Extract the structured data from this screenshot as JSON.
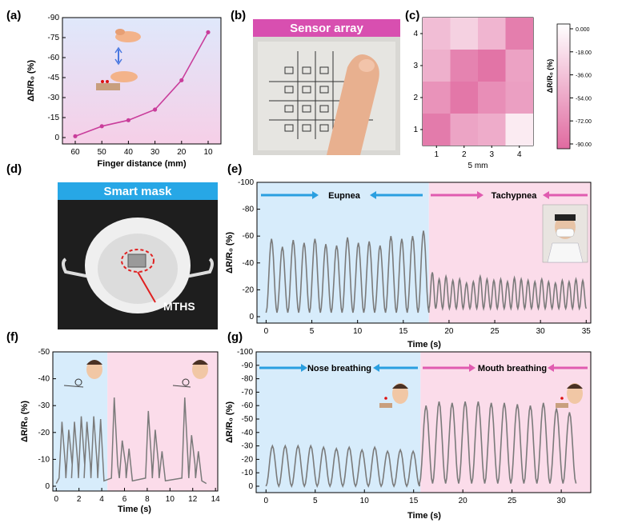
{
  "panels": {
    "a": "(a)",
    "b": "(b)",
    "c": "(c)",
    "d": "(d)",
    "e": "(e)",
    "f": "(f)",
    "g": "(g)"
  },
  "photos": {
    "sensor_array_title": "Sensor array",
    "smart_mask_title": "Smart mask",
    "mths_label": "MTHS"
  },
  "chart_data": [
    {
      "id": "a",
      "type": "line",
      "x": [
        "60",
        "50",
        "40",
        "30",
        "20",
        "10"
      ],
      "y": [
        -1,
        -8.5,
        -13,
        -21,
        -43,
        -79
      ],
      "xlabel": "Finger distance (mm)",
      "ylabel": "ΔR/R₀ (%)",
      "ylim": [
        0,
        -90
      ],
      "yticks": [
        "0",
        "-15",
        "-30",
        "-45",
        "-60",
        "-75",
        "-90"
      ],
      "color": "#c93d9b",
      "background": [
        "#dfe8fb",
        "#f6cfe7"
      ]
    },
    {
      "id": "c",
      "type": "heatmap",
      "xlabel": "5 mm",
      "xticks": [
        "1",
        "2",
        "3",
        "4"
      ],
      "yticks": [
        "1",
        "2",
        "3",
        "4"
      ],
      "values": [
        [
          -80,
          -55,
          -50,
          -12
        ],
        [
          -65,
          -82,
          -68,
          -58
        ],
        [
          -48,
          -75,
          -84,
          -56
        ],
        [
          -40,
          -28,
          -45,
          -78
        ]
      ],
      "colorbar": {
        "ticks": [
          "0.000",
          "-18.00",
          "-36.00",
          "-54.00",
          "-72.00",
          "-90.00"
        ],
        "label": "ΔR/R₀ (%)"
      }
    },
    {
      "id": "e",
      "type": "line",
      "xlabel": "Time (s)",
      "ylabel": "ΔR/R₀ (%)",
      "xlim": [
        -1,
        35.5
      ],
      "ylim": [
        0,
        -100
      ],
      "xticks": [
        "0",
        "5",
        "10",
        "15",
        "20",
        "25",
        "30",
        "35"
      ],
      "yticks": [
        "0",
        "-20",
        "-40",
        "-60",
        "-80",
        "-100"
      ],
      "regions": [
        {
          "label": "Eupnea",
          "from": -1,
          "to": 17.8,
          "color": "#d7ecfb"
        },
        {
          "label": "Tachypnea",
          "from": 17.8,
          "to": 35.5,
          "color": "#fbdcea"
        }
      ],
      "segments": [
        {
          "from": 0,
          "to": 17.8,
          "period": 1.2,
          "min": -3,
          "peaks": [
            -58,
            -52,
            -57,
            -55,
            -58,
            -54,
            -53,
            -59,
            -55,
            -56,
            -53,
            -60,
            -58,
            -60,
            -64
          ]
        },
        {
          "from": 17.8,
          "to": 35,
          "period": 0.75,
          "min": -6,
          "peaks": [
            -33,
            -28,
            -30,
            -27,
            -28,
            -25,
            -26,
            -30,
            -28,
            -27,
            -28,
            -26,
            -29,
            -28,
            -27,
            -26,
            -28,
            -26,
            -25,
            -27,
            -26,
            -28,
            -27
          ]
        }
      ]
    },
    {
      "id": "f",
      "type": "line",
      "xlabel": "Time (s)",
      "ylabel": "ΔR/R₀ (%)",
      "xlim": [
        -0.3,
        14.2
      ],
      "ylim": [
        0,
        -50
      ],
      "xticks": [
        "0",
        "2",
        "4",
        "6",
        "8",
        "10",
        "12",
        "14"
      ],
      "yticks": [
        "0",
        "-10",
        "-20",
        "-30",
        "-40",
        "-50"
      ],
      "regions": [
        {
          "from": -0.3,
          "to": 4.5,
          "color": "#d7ecfb"
        },
        {
          "from": 4.5,
          "to": 14.2,
          "color": "#fbdcea"
        }
      ],
      "peaks": [
        [
          0.5,
          -24
        ],
        [
          1.1,
          -21
        ],
        [
          1.6,
          -24
        ],
        [
          2.2,
          -26
        ],
        [
          2.7,
          -24
        ],
        [
          3.3,
          -26
        ],
        [
          3.9,
          -25
        ],
        [
          5.1,
          -33
        ],
        [
          5.8,
          -17
        ],
        [
          6.4,
          -14
        ],
        [
          8.1,
          -28
        ],
        [
          8.7,
          -21
        ],
        [
          9.3,
          -13
        ],
        [
          11.3,
          -33
        ],
        [
          11.9,
          -19
        ],
        [
          12.5,
          -13
        ]
      ]
    },
    {
      "id": "g",
      "type": "line",
      "xlabel": "Time (s)",
      "ylabel": "ΔR/R₀ (%)",
      "xlim": [
        -1,
        33
      ],
      "ylim": [
        0,
        -100
      ],
      "xticks": [
        "0",
        "5",
        "10",
        "15",
        "20",
        "25",
        "30"
      ],
      "yticks": [
        "0",
        "-10",
        "-20",
        "-30",
        "-40",
        "-50",
        "-60",
        "-70",
        "-80",
        "-90",
        "-100"
      ],
      "regions": [
        {
          "label": "Nose breathing",
          "from": -1,
          "to": 15.7,
          "color": "#d7ecfb"
        },
        {
          "label": "Mouth breathing",
          "from": 15.7,
          "to": 33,
          "color": "#fbdcea"
        }
      ],
      "segments": [
        {
          "from": 0,
          "to": 15.6,
          "period": 1.25,
          "min": 0,
          "peaks": [
            -30,
            -30,
            -30,
            -30,
            -29,
            -28,
            -29,
            -27,
            -29,
            -26,
            -27,
            -26
          ]
        },
        {
          "from": 15.6,
          "to": 31.5,
          "period": 1.35,
          "min": -2,
          "peaks": [
            -60,
            -63,
            -62,
            -63,
            -63,
            -62,
            -62,
            -61,
            -60,
            -62,
            -58,
            -55
          ]
        }
      ]
    }
  ]
}
